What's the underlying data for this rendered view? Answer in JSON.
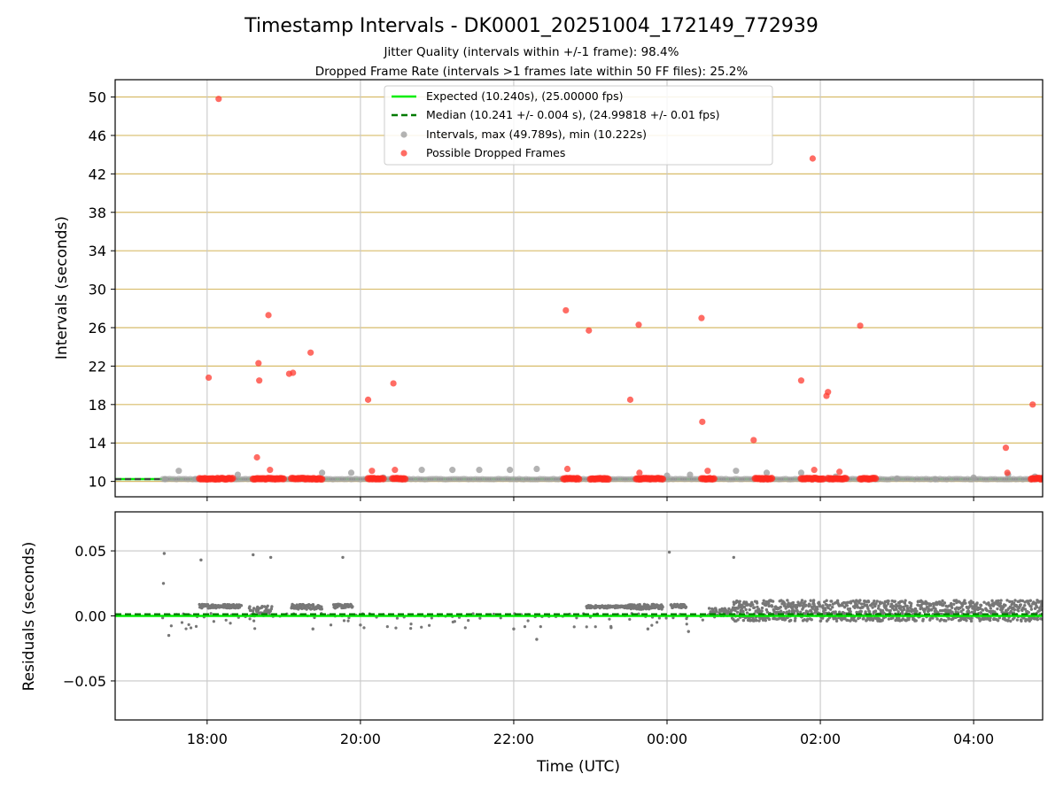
{
  "chart_data": {
    "type": "scatter",
    "title": "Timestamp Intervals - DK0001_20251004_172149_772939",
    "subtitle_lines": [
      "Jitter Quality (intervals within +/-1 frame): 98.4%",
      "Dropped Frame Rate (intervals >1 frames late within 50 FF files): 25.2%"
    ],
    "xlabel": "Time (UTC)",
    "x_tick_labels": [
      "18:00",
      "20:00",
      "22:00",
      "00:00",
      "02:00",
      "04:00"
    ],
    "x_tick_hours": [
      18,
      20,
      22,
      24,
      26,
      28
    ],
    "x_range_hours": [
      16.8,
      28.9
    ],
    "legend_position": "top-center",
    "panels": [
      {
        "name": "intervals",
        "ylabel": "Intervals (seconds)",
        "ylim": [
          8.4,
          51.8
        ],
        "yticks": [
          10,
          14,
          18,
          22,
          26,
          30,
          34,
          38,
          42,
          46,
          50
        ],
        "grid": "horizontal goldenrod lines at ticks, vertical grey at hour ticks",
        "expected_line": 10.24,
        "median_line": 10.241,
        "series": [
          {
            "name": "Intervals, max (49.789s), min (10.222s)",
            "color": "#a0a0a0",
            "points": [
              [
                17.45,
                10.24
              ],
              [
                17.63,
                11.1
              ],
              [
                17.85,
                10.25
              ],
              [
                18.4,
                10.7
              ],
              [
                18.7,
                10.3
              ],
              [
                19.5,
                10.9
              ],
              [
                19.88,
                10.9
              ],
              [
                20.3,
                10.4
              ],
              [
                20.8,
                11.2
              ],
              [
                21.2,
                11.2
              ],
              [
                21.55,
                11.2
              ],
              [
                21.95,
                11.2
              ],
              [
                22.3,
                11.3
              ],
              [
                22.7,
                10.24
              ],
              [
                23.2,
                10.3
              ],
              [
                23.6,
                10.24
              ],
              [
                24.0,
                10.6
              ],
              [
                24.3,
                10.7
              ],
              [
                24.9,
                11.1
              ],
              [
                25.3,
                10.9
              ],
              [
                25.75,
                10.9
              ],
              [
                26.2,
                10.5
              ],
              [
                26.6,
                10.24
              ],
              [
                27.0,
                10.3
              ],
              [
                27.5,
                10.24
              ],
              [
                28.0,
                10.4
              ],
              [
                28.45,
                10.7
              ],
              [
                28.8,
                10.5
              ]
            ]
          },
          {
            "name": "Possible Dropped Frames",
            "color": "#ff3b30",
            "points": [
              [
                18.02,
                20.8
              ],
              [
                18.15,
                49.8
              ],
              [
                18.65,
                12.5
              ],
              [
                18.67,
                22.3
              ],
              [
                18.68,
                20.5
              ],
              [
                18.8,
                27.3
              ],
              [
                18.82,
                11.2
              ],
              [
                19.07,
                21.2
              ],
              [
                19.12,
                21.3
              ],
              [
                19.35,
                23.4
              ],
              [
                20.1,
                18.5
              ],
              [
                20.15,
                11.1
              ],
              [
                20.43,
                20.2
              ],
              [
                20.45,
                11.2
              ],
              [
                22.68,
                27.8
              ],
              [
                22.7,
                11.3
              ],
              [
                22.98,
                25.7
              ],
              [
                23.52,
                18.5
              ],
              [
                23.63,
                26.3
              ],
              [
                23.64,
                10.9
              ],
              [
                24.45,
                27.0
              ],
              [
                24.46,
                16.2
              ],
              [
                24.53,
                11.1
              ],
              [
                25.13,
                14.3
              ],
              [
                25.75,
                20.5
              ],
              [
                25.9,
                43.6
              ],
              [
                25.92,
                11.2
              ],
              [
                26.08,
                18.9
              ],
              [
                26.1,
                19.3
              ],
              [
                26.25,
                11.0
              ],
              [
                26.52,
                26.2
              ],
              [
                28.42,
                13.5
              ],
              [
                28.44,
                10.9
              ],
              [
                28.77,
                18.0
              ]
            ]
          }
        ],
        "dropped_frame_clusters_hours": [
          [
            17.9,
            18.35
          ],
          [
            18.6,
            19.0
          ],
          [
            19.1,
            19.5
          ],
          [
            20.1,
            20.3
          ],
          [
            20.42,
            20.6
          ],
          [
            22.65,
            22.85
          ],
          [
            23.0,
            23.25
          ],
          [
            23.6,
            23.95
          ],
          [
            24.45,
            24.62
          ],
          [
            25.15,
            25.38
          ],
          [
            25.75,
            26.05
          ],
          [
            26.1,
            26.35
          ],
          [
            26.52,
            26.72
          ],
          [
            28.75,
            28.9
          ]
        ]
      },
      {
        "name": "residuals",
        "ylabel": "Residuals (seconds)",
        "ylim": [
          -0.08,
          0.08
        ],
        "yticks": [
          0.05,
          0.0,
          -0.05
        ],
        "ytick_labels": [
          "0.05",
          "0.00",
          "−0.05"
        ],
        "expected_line": 0.0,
        "median_line": 0.0013,
        "outliers": [
          [
            17.44,
            0.048
          ],
          [
            17.43,
            0.025
          ],
          [
            17.92,
            0.043
          ],
          [
            18.6,
            0.047
          ],
          [
            18.83,
            0.045
          ],
          [
            19.77,
            0.045
          ],
          [
            24.03,
            0.049
          ],
          [
            24.87,
            0.045
          ],
          [
            17.5,
            -0.015
          ],
          [
            22.3,
            -0.018
          ],
          [
            24.28,
            -0.012
          ],
          [
            23.75,
            -0.01
          ],
          [
            19.38,
            -0.01
          ],
          [
            23.27,
            -0.009
          ],
          [
            20.0,
            -0.007
          ],
          [
            22.0,
            -0.01
          ]
        ],
        "bands": [
          {
            "x_hours": [
              17.9,
              18.45
            ],
            "y_range": [
              0.006,
              0.009
            ]
          },
          {
            "x_hours": [
              18.55,
              18.85
            ],
            "y_range": [
              0.0,
              0.008
            ]
          },
          {
            "x_hours": [
              19.1,
              19.5
            ],
            "y_range": [
              0.005,
              0.009
            ]
          },
          {
            "x_hours": [
              19.65,
              19.9
            ],
            "y_range": [
              0.006,
              0.009
            ]
          },
          {
            "x_hours": [
              22.95,
              23.5
            ],
            "y_range": [
              0.006,
              0.008
            ]
          },
          {
            "x_hours": [
              23.5,
              23.95
            ],
            "y_range": [
              0.005,
              0.009
            ]
          },
          {
            "x_hours": [
              24.05,
              24.25
            ],
            "y_range": [
              0.006,
              0.009
            ]
          },
          {
            "x_hours": [
              24.55,
              24.85
            ],
            "y_range": [
              0.0,
              0.006
            ]
          },
          {
            "x_hours": [
              24.85,
              28.9
            ],
            "y_range": [
              -0.004,
              0.012
            ]
          }
        ]
      }
    ]
  }
}
